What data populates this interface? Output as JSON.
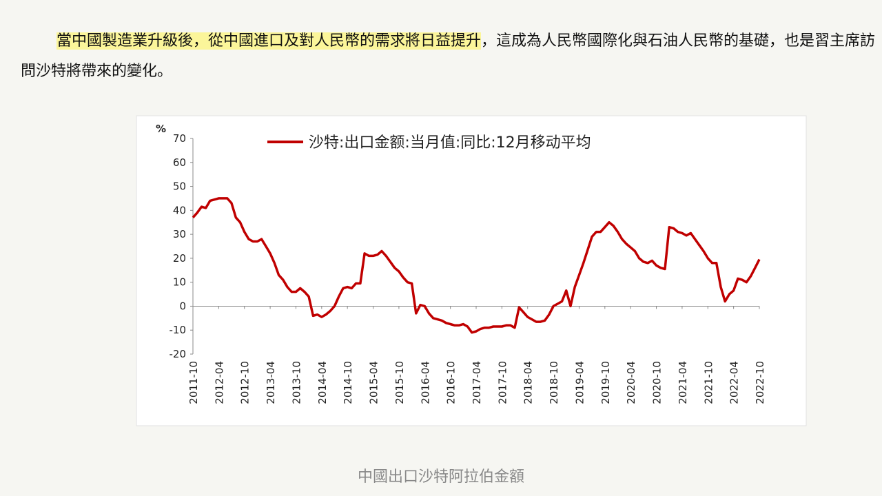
{
  "paragraph": {
    "highlighted": "當中國製造業升級後，從中國進口及對人民幣的需求將日益提升",
    "rest": "，這成為人民幣國際化與石油人民幣的基礎，也是習主席訪問沙特將帶來的變化。"
  },
  "chart_data": {
    "type": "line",
    "y_axis_label": "%",
    "categories": [
      "2011-10",
      null,
      null,
      null,
      null,
      null,
      "2012-04",
      null,
      null,
      null,
      null,
      null,
      "2012-10",
      null,
      null,
      null,
      null,
      null,
      "2013-04",
      null,
      null,
      null,
      null,
      null,
      "2013-10",
      null,
      null,
      null,
      null,
      null,
      "2014-04",
      null,
      null,
      null,
      null,
      null,
      "2014-10",
      null,
      null,
      null,
      null,
      null,
      "2015-04",
      null,
      null,
      null,
      null,
      null,
      "2015-10",
      null,
      null,
      null,
      null,
      null,
      "2016-04",
      null,
      null,
      null,
      null,
      null,
      "2016-10",
      null,
      null,
      null,
      null,
      null,
      "2017-04",
      null,
      null,
      null,
      null,
      null,
      "2017-10",
      null,
      null,
      null,
      null,
      null,
      "2018-04",
      null,
      null,
      null,
      null,
      null,
      "2018-10",
      null,
      null,
      null,
      null,
      null,
      "2019-04",
      null,
      null,
      null,
      null,
      null,
      "2019-10",
      null,
      null,
      null,
      null,
      null,
      "2020-04",
      null,
      null,
      null,
      null,
      null,
      "2020-10",
      null,
      null,
      null,
      null,
      null,
      "2021-04",
      null,
      null,
      null,
      null,
      null,
      "2021-10",
      null,
      null,
      null,
      null,
      null,
      "2022-04",
      null,
      null,
      null,
      null,
      null,
      "2022-10"
    ],
    "series": [
      {
        "name": "沙特:出口金额:当月值:同比:12月移动平均",
        "color": "#c00000",
        "values": [
          37,
          39,
          41.5,
          41,
          44,
          44.5,
          45,
          45,
          45,
          43,
          37,
          35,
          31,
          28,
          27,
          27,
          28,
          25,
          22,
          18,
          13,
          11,
          8,
          6,
          6,
          7.5,
          6,
          4,
          -4,
          -3.5,
          -4.5,
          -3.5,
          -2,
          0,
          4,
          7.5,
          8,
          7.5,
          9.5,
          9.5,
          22,
          21,
          21,
          21.5,
          23,
          21,
          18.5,
          16,
          14.5,
          12,
          10,
          9.5,
          -3,
          0.5,
          0,
          -3,
          -5,
          -5.5,
          -6,
          -7,
          -7.5,
          -8,
          -8,
          -7.5,
          -8.5,
          -11,
          -10.5,
          -9.5,
          -9,
          -9,
          -8.5,
          -8.5,
          -8.5,
          -8,
          -8,
          -9,
          -0.5,
          -2.5,
          -4.5,
          -5.5,
          -6.5,
          -6.5,
          -6,
          -3.5,
          0,
          1,
          2,
          6.5,
          0,
          8,
          13,
          18,
          23.5,
          29,
          31,
          31,
          33,
          35,
          33.5,
          31,
          28,
          26,
          24.5,
          23,
          20,
          18.5,
          18,
          19,
          17,
          16,
          15.5,
          33,
          32.5,
          31,
          30.5,
          29.5,
          30.5,
          28,
          25.5,
          23,
          20,
          18,
          18,
          8,
          2,
          5,
          6.5,
          11.5,
          11,
          10,
          12.5,
          16,
          19.5
        ]
      }
    ],
    "ylim": [
      -20,
      70
    ],
    "yticks": [
      -20,
      -10,
      0,
      10,
      20,
      30,
      40,
      50,
      60,
      70
    ]
  },
  "caption": "中國出口沙特阿拉伯金額"
}
